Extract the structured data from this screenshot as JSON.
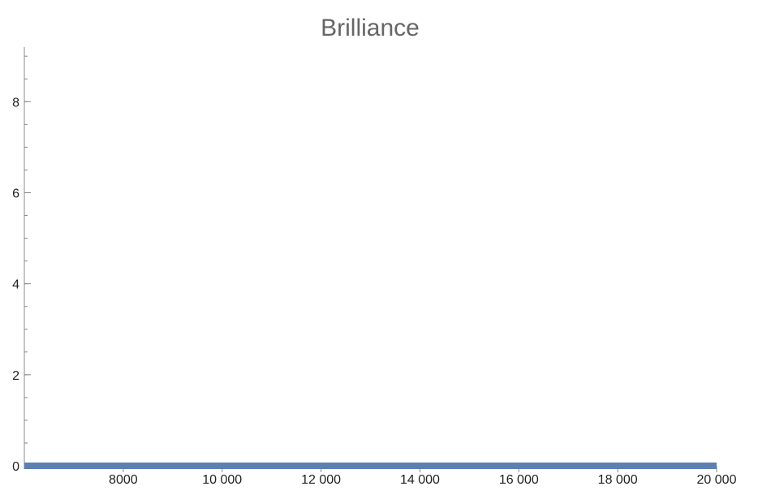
{
  "chart_data": {
    "type": "line",
    "title": "Brilliance",
    "xlabel": "",
    "ylabel": "",
    "xlim": [
      6000,
      20000
    ],
    "ylim": [
      0,
      9.2
    ],
    "x_ticks": [
      8000,
      10000,
      12000,
      14000,
      16000,
      18000,
      20000
    ],
    "x_tick_labels": [
      "8000",
      "10 000",
      "12 000",
      "14 000",
      "16 000",
      "18 000",
      "20 000"
    ],
    "x_minor_step": 500,
    "y_ticks": [
      0,
      2,
      4,
      6,
      8
    ],
    "y_tick_labels": [
      "0",
      "2",
      "4",
      "6",
      "8"
    ],
    "y_minor_step": 0.5,
    "grid": false,
    "legend": "none",
    "series": [
      {
        "x": [
          6000,
          8000,
          10000,
          12000,
          14000,
          16000,
          18000,
          20000
        ],
        "y": [
          0,
          0,
          0,
          0,
          0,
          0,
          0,
          0
        ],
        "color": "#5E7FB2"
      }
    ]
  }
}
